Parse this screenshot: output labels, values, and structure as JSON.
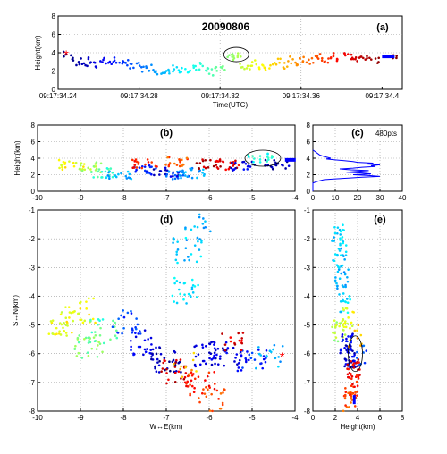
{
  "chart_data": [
    {
      "id": "a",
      "type": "scatter",
      "panel_label": "(a)",
      "title": "20090806",
      "xlabel": "Time(UTC)",
      "ylabel": "Height(km)",
      "xlim": [
        0.24,
        0.41
      ],
      "ylim": [
        0,
        8
      ],
      "x_ticks": [
        0.24,
        0.28,
        0.32,
        0.36,
        0.4
      ],
      "x_tick_labels": [
        "09:17:34.24",
        "09:17:34.28",
        "09:17:34.32",
        "09:17:34.36",
        "09:17:34.4"
      ],
      "y_ticks": [
        0,
        2,
        4,
        6,
        8
      ],
      "y_tick_labels": [
        "0",
        "2",
        "4",
        "6",
        "8"
      ],
      "grid": true,
      "color_by": "time",
      "points": [
        [
          0.244,
          3.8
        ],
        [
          0.247,
          3.5
        ],
        [
          0.25,
          3.0
        ],
        [
          0.253,
          2.8
        ],
        [
          0.256,
          3.1
        ],
        [
          0.259,
          2.6
        ],
        [
          0.262,
          3.3
        ],
        [
          0.265,
          2.9
        ],
        [
          0.268,
          3.2
        ],
        [
          0.271,
          2.7
        ],
        [
          0.274,
          3.0
        ],
        [
          0.277,
          2.4
        ],
        [
          0.28,
          2.6
        ],
        [
          0.283,
          2.2
        ],
        [
          0.286,
          2.4
        ],
        [
          0.289,
          2.0
        ],
        [
          0.292,
          2.1
        ],
        [
          0.295,
          1.8
        ],
        [
          0.298,
          2.3
        ],
        [
          0.301,
          2.0
        ],
        [
          0.304,
          1.9
        ],
        [
          0.307,
          2.2
        ],
        [
          0.31,
          2.5
        ],
        [
          0.313,
          2.1
        ],
        [
          0.316,
          1.8
        ],
        [
          0.319,
          2.4
        ],
        [
          0.322,
          2.2
        ],
        [
          0.325,
          3.8
        ],
        [
          0.327,
          3.6
        ],
        [
          0.329,
          3.9
        ],
        [
          0.331,
          2.6
        ],
        [
          0.334,
          2.2
        ],
        [
          0.337,
          2.8
        ],
        [
          0.34,
          2.5
        ],
        [
          0.343,
          2.2
        ],
        [
          0.346,
          2.7
        ],
        [
          0.349,
          3.0
        ],
        [
          0.352,
          2.6
        ],
        [
          0.355,
          3.2
        ],
        [
          0.358,
          2.9
        ],
        [
          0.361,
          3.4
        ],
        [
          0.364,
          3.1
        ],
        [
          0.367,
          3.3
        ],
        [
          0.37,
          3.5
        ],
        [
          0.373,
          3.2
        ],
        [
          0.376,
          3.6
        ],
        [
          0.379,
          3.4
        ],
        [
          0.382,
          3.7
        ],
        [
          0.385,
          3.5
        ],
        [
          0.388,
          3.3
        ],
        [
          0.391,
          3.6
        ],
        [
          0.394,
          3.4
        ],
        [
          0.397,
          3.2
        ],
        [
          0.406,
          3.5
        ]
      ],
      "annotation": {
        "type": "ellipse",
        "x": 0.328,
        "y": 3.8
      },
      "marker": {
        "type": "bar",
        "x": 0.4,
        "y": 3.6,
        "color": "#0000ff"
      },
      "start_marker": {
        "x": 0.244,
        "y": 3.8,
        "color": "#ff0000"
      }
    },
    {
      "id": "b",
      "type": "scatter",
      "panel_label": "(b)",
      "ylabel": "Height(km)",
      "xlim": [
        -10,
        -4
      ],
      "ylim": [
        0,
        8
      ],
      "x_ticks": [
        -10,
        -9,
        -8,
        -7,
        -6,
        -5,
        -4
      ],
      "x_tick_labels": [
        "-10",
        "-9",
        "-8",
        "-7",
        "-6",
        "-5",
        "-4"
      ],
      "y_ticks": [
        0,
        2,
        4,
        6,
        8
      ],
      "y_tick_labels": [
        "0",
        "2",
        "4",
        "6",
        "8"
      ],
      "grid": true,
      "color_by": "time",
      "annotation": {
        "type": "ellipse",
        "x": -4.75,
        "y": 4.0
      },
      "marker": {
        "type": "bar",
        "x": -4.15,
        "y": 3.8,
        "color": "#0000ff"
      }
    },
    {
      "id": "c",
      "type": "line",
      "panel_label": "(c)",
      "annotation_text": "480pts",
      "xlim": [
        0,
        40
      ],
      "ylim": [
        0,
        8
      ],
      "x_ticks": [
        0,
        10,
        20,
        30,
        40
      ],
      "x_tick_labels": [
        "0",
        "10",
        "20",
        "30",
        "40"
      ],
      "y_ticks": [
        0,
        2,
        4,
        6,
        8
      ],
      "y_tick_labels": [
        "0",
        "2",
        "4",
        "6",
        "8"
      ],
      "grid": true,
      "color": "#0000ff",
      "profile": [
        [
          0,
          0.0
        ],
        [
          0,
          1.0
        ],
        [
          2,
          1.2
        ],
        [
          5,
          1.4
        ],
        [
          10,
          1.5
        ],
        [
          16,
          1.6
        ],
        [
          22,
          1.7
        ],
        [
          30,
          1.8
        ],
        [
          25,
          1.9
        ],
        [
          18,
          2.0
        ],
        [
          26,
          2.1
        ],
        [
          22,
          2.2
        ],
        [
          15,
          2.3
        ],
        [
          20,
          2.4
        ],
        [
          25,
          2.5
        ],
        [
          17,
          2.6
        ],
        [
          12,
          2.7
        ],
        [
          18,
          2.8
        ],
        [
          22,
          2.9
        ],
        [
          28,
          3.0
        ],
        [
          26,
          3.1
        ],
        [
          30,
          3.2
        ],
        [
          24,
          3.3
        ],
        [
          27,
          3.4
        ],
        [
          20,
          3.5
        ],
        [
          18,
          3.6
        ],
        [
          14,
          3.7
        ],
        [
          10,
          3.8
        ],
        [
          6,
          3.9
        ],
        [
          8,
          4.0
        ],
        [
          5,
          4.2
        ],
        [
          3,
          4.4
        ],
        [
          2,
          4.6
        ],
        [
          0,
          5.0
        ]
      ]
    },
    {
      "id": "d",
      "type": "scatter",
      "panel_label": "(d)",
      "xlabel": "W↔E(km)",
      "ylabel": "S↔N(km)",
      "xlim": [
        -10,
        -4
      ],
      "ylim": [
        -8,
        -1
      ],
      "x_ticks": [
        -10,
        -9,
        -8,
        -7,
        -6,
        -5,
        -4
      ],
      "x_tick_labels": [
        "-10",
        "-9",
        "-8",
        "-7",
        "-6",
        "-5",
        "-4"
      ],
      "y_ticks": [
        -8,
        -7,
        -6,
        -5,
        -4,
        -3,
        -2,
        -1
      ],
      "y_tick_labels": [
        "-8",
        "-7",
        "-6",
        "-5",
        "-4",
        "-3",
        "-2",
        "-1"
      ],
      "grid": true,
      "color_by": "time",
      "marker": {
        "type": "star",
        "x": -4.3,
        "y": -6.1,
        "color": "#ff0000"
      }
    },
    {
      "id": "e",
      "type": "scatter",
      "panel_label": "(e)",
      "xlabel": "Height(km)",
      "xlim": [
        0,
        8
      ],
      "ylim": [
        -8,
        -1
      ],
      "x_ticks": [
        0,
        2,
        4,
        6,
        8
      ],
      "x_tick_labels": [
        "0",
        "2",
        "4",
        "6",
        "8"
      ],
      "y_ticks": [
        -8,
        -7,
        -6,
        -5,
        -4,
        -3,
        -2,
        -1
      ],
      "y_tick_labels": [
        "-8",
        "-7",
        "-6",
        "-5",
        "-4",
        "-3",
        "-2",
        "-1"
      ],
      "grid": true,
      "color_by": "time",
      "annotation": {
        "type": "ellipse",
        "x": 3.8,
        "y": -6.0
      },
      "marker": {
        "type": "bar",
        "x": 3.7,
        "y": -7.6,
        "color": "#0000ff"
      }
    }
  ]
}
